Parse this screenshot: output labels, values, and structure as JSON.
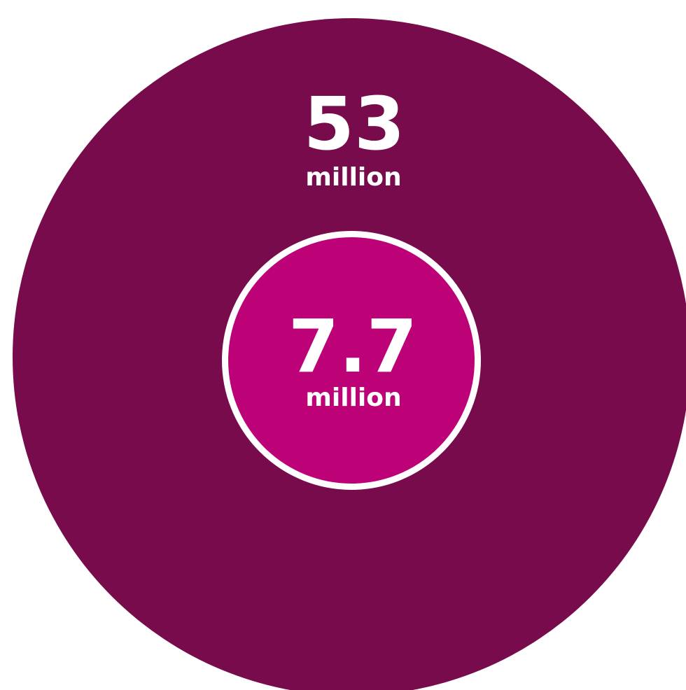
{
  "chart_data": {
    "type": "bubble",
    "series": [
      {
        "value": 53,
        "value_label": "53",
        "unit_label": "million",
        "color": "#770B4B"
      },
      {
        "value": 7.7,
        "value_label": "7.7",
        "unit_label": "million",
        "color": "#BD0277",
        "outline_color": "#FFFFFF"
      }
    ]
  }
}
